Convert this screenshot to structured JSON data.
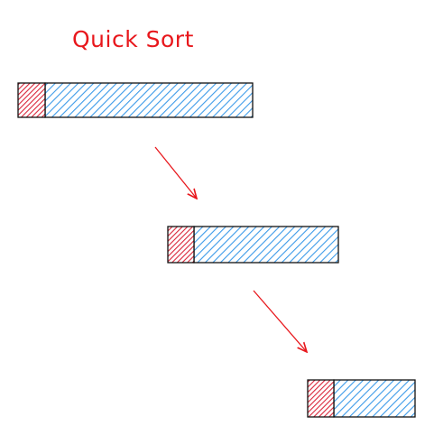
{
  "title": "Quick Sort",
  "colors": {
    "title": "#e8171c",
    "pivot_fill": "#d9263a",
    "partition_fill": "#3d9be9",
    "arrow": "#e8171c",
    "outline": "#111111"
  },
  "steps": [
    {
      "step": 1,
      "pivot": true,
      "relative_size": 1.0
    },
    {
      "step": 2,
      "pivot": true,
      "relative_size": 0.73
    },
    {
      "step": 3,
      "pivot": true,
      "relative_size": 0.46
    }
  ]
}
